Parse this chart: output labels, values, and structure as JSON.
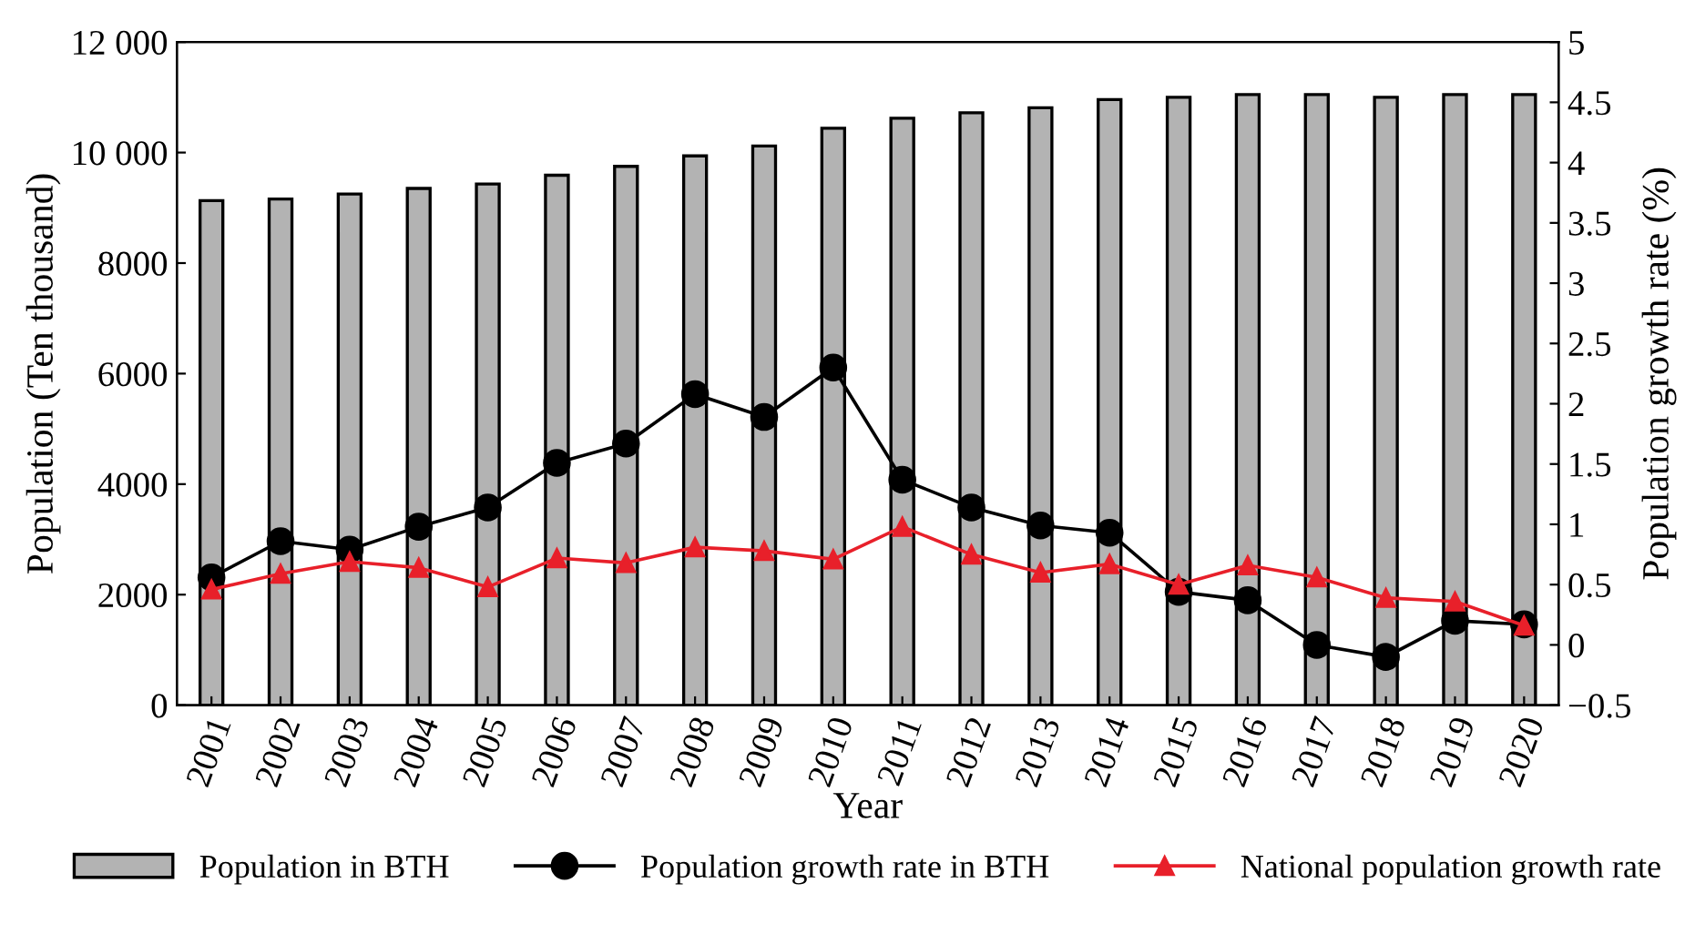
{
  "chart_data": {
    "type": "bar",
    "xlabel": "Year",
    "ylabel": "Population (Ten thousand)",
    "y2label": "Population growth rate (%)",
    "categories": [
      "2001",
      "2002",
      "2003",
      "2004",
      "2005",
      "2006",
      "2007",
      "2008",
      "2009",
      "2010",
      "2011",
      "2012",
      "2013",
      "2014",
      "2015",
      "2016",
      "2017",
      "2018",
      "2019",
      "2020"
    ],
    "series": [
      {
        "name": "Population in BTH",
        "color": "#b3b3b3",
        "values": [
          9130,
          9160,
          9250,
          9350,
          9430,
          9590,
          9750,
          9940,
          10120,
          10440,
          10620,
          10720,
          10810,
          10960,
          11000,
          11050,
          11050,
          11000,
          11050,
          11050
        ]
      },
      {
        "name": "Population growth rate in BTH",
        "type": "line",
        "axis": "y2",
        "color": "#000000",
        "marker": "circle",
        "values": [
          0.56,
          0.86,
          0.79,
          0.98,
          1.14,
          1.51,
          1.67,
          2.08,
          1.89,
          2.3,
          1.37,
          1.14,
          0.99,
          0.93,
          0.44,
          0.37,
          0.0,
          -0.1,
          0.2,
          0.17
        ]
      },
      {
        "name": "National population growth rate",
        "type": "line",
        "axis": "y2",
        "color": "#e8202a",
        "marker": "triangle",
        "values": [
          0.46,
          0.59,
          0.69,
          0.64,
          0.48,
          0.72,
          0.68,
          0.81,
          0.78,
          0.71,
          0.98,
          0.75,
          0.6,
          0.67,
          0.5,
          0.66,
          0.56,
          0.39,
          0.36,
          0.16
        ]
      }
    ],
    "ylim": [
      0,
      12000
    ],
    "yticks": [
      0,
      2000,
      4000,
      6000,
      8000,
      {
        "value": 10000,
        "label": "10 000"
      },
      {
        "value": 12000,
        "label": "12 000"
      }
    ],
    "y2lim": [
      -0.5,
      5
    ],
    "y2ticks": [
      {
        "value": -0.5,
        "label": "−0.5"
      },
      0,
      0.5,
      1,
      1.5,
      2,
      2.5,
      3,
      3.5,
      4,
      4.5,
      5
    ],
    "grid": false,
    "legend": "bottom"
  }
}
